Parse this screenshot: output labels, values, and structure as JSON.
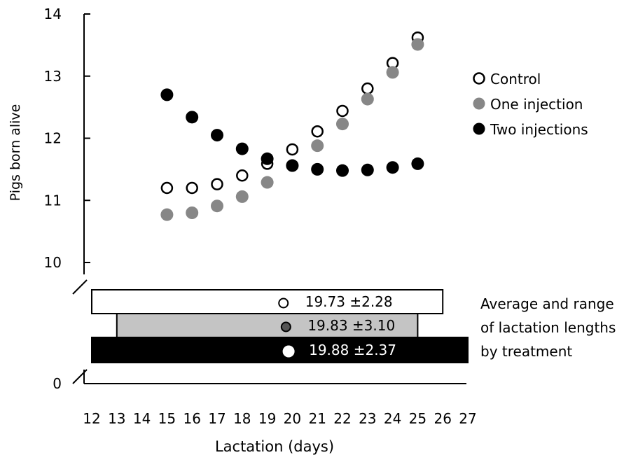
{
  "chart_data": {
    "type": "scatter",
    "xlabel": "Lactation (days)",
    "ylabel": "Pigs born alive",
    "x_ticks": [
      12,
      13,
      14,
      15,
      16,
      17,
      18,
      19,
      20,
      21,
      22,
      23,
      24,
      25,
      26,
      27
    ],
    "y_ticks": [
      0,
      10,
      11,
      12,
      13,
      14
    ],
    "y_axis_break": "between 0 and 10",
    "ylim": [
      10,
      14
    ],
    "xlim": [
      12,
      27
    ],
    "x": [
      15,
      16,
      17,
      18,
      19,
      20,
      21,
      22,
      23,
      24,
      25
    ],
    "series": [
      {
        "name": "Control",
        "marker": "hollow",
        "color": "#000000",
        "values": [
          11.2,
          11.2,
          11.26,
          11.4,
          11.59,
          11.82,
          12.11,
          12.44,
          12.8,
          13.21,
          13.62
        ]
      },
      {
        "name": "One injection",
        "marker": "filled",
        "color": "#878787",
        "values": [
          10.77,
          10.8,
          10.91,
          11.06,
          11.29,
          11.56,
          11.88,
          12.23,
          12.63,
          13.06,
          13.51
        ]
      },
      {
        "name": "Two injections",
        "marker": "filled",
        "color": "#000000",
        "values": [
          12.7,
          12.34,
          12.05,
          11.83,
          11.67,
          11.56,
          11.5,
          11.48,
          11.49,
          11.53,
          11.59
        ]
      }
    ],
    "legend": {
      "placement": "right",
      "entries": [
        "Control",
        "One injection",
        "Two injections"
      ]
    },
    "lactation_bars": {
      "caption_lines": [
        "Average and range",
        "of lactation lengths",
        "by treatment"
      ],
      "bars": [
        {
          "series": "Control",
          "min": 12,
          "max": 26,
          "mean": 19.73,
          "label": "19.73 ±2.28",
          "fill": "#ffffff",
          "marker_color": "#ffffff"
        },
        {
          "series": "One injection",
          "min": 13,
          "max": 25,
          "mean": 19.83,
          "label": "19.83 ±3.10",
          "fill": "#c4c4c4",
          "marker_color": "#555555"
        },
        {
          "series": "Two injections",
          "min": 12,
          "max": 27,
          "mean": 19.88,
          "label": "19.88 ±2.37",
          "fill": "#000000",
          "marker_color": "#ffffff"
        }
      ]
    }
  }
}
